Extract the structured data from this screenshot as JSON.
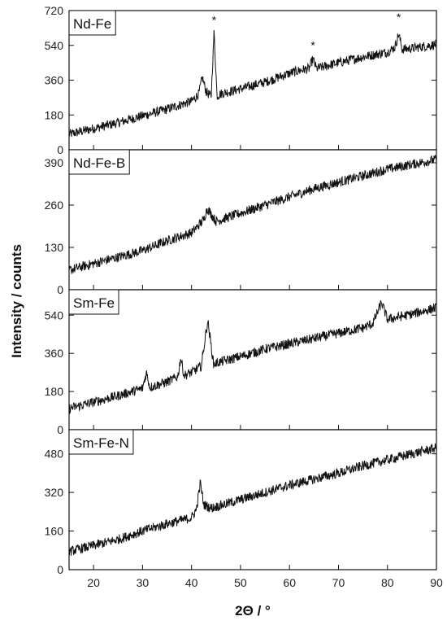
{
  "chart_data": {
    "type": "line",
    "xlabel": "2Θ / °",
    "ylabel": "Intensity / counts",
    "xlim": [
      15,
      90
    ],
    "x_ticks": [
      "20",
      "30",
      "40",
      "50",
      "60",
      "70",
      "80",
      "90"
    ],
    "panels": [
      {
        "label": "Nd-Fe",
        "ylim": [
          0,
          720
        ],
        "y_ticks": [
          "0",
          "180",
          "360",
          "540",
          "720"
        ],
        "markers": [
          "*",
          "*",
          "*"
        ],
        "marker_x": [
          44.6,
          64.8,
          82.3
        ],
        "marker_y": [
          650,
          520,
          665
        ],
        "series": [
          {
            "x": [
              15,
              20,
              25,
              30,
              35,
              38,
              40,
              41.5,
              42.2,
              43,
              44,
              44.6,
              45.2,
              46,
              50,
              55,
              60,
              62,
              64,
              64.8,
              65.5,
              70,
              75,
              80,
              81.5,
              82.3,
              83,
              85,
              90
            ],
            "values": [
              80,
              110,
              140,
              175,
              210,
              235,
              250,
              290,
              375,
              300,
              275,
              610,
              280,
              290,
              315,
              350,
              395,
              410,
              420,
              470,
              420,
              450,
              480,
              505,
              530,
              600,
              520,
              525,
              545
            ]
          }
        ]
      },
      {
        "label": "Nd-Fe-B",
        "ylim": [
          0,
          430
        ],
        "y_ticks": [
          "0",
          "130",
          "260",
          "390"
        ],
        "series": [
          {
            "x": [
              15,
              20,
              25,
              30,
              35,
              40,
              42.5,
              43.2,
              45,
              50,
              55,
              60,
              65,
              70,
              75,
              80,
              85,
              90
            ],
            "values": [
              60,
              80,
              100,
              120,
              150,
              175,
              215,
              250,
              210,
              235,
              260,
              285,
              310,
              330,
              350,
              370,
              385,
              400
            ]
          }
        ]
      },
      {
        "label": "Sm-Fe",
        "ylim": [
          0,
          660
        ],
        "y_ticks": [
          "0",
          "180",
          "360",
          "540"
        ],
        "series": [
          {
            "x": [
              15,
              20,
              25,
              30,
              30.8,
              31.5,
              35,
              37.2,
              37.8,
              38.5,
              40,
              42,
              43.3,
              44.5,
              46,
              50,
              55,
              60,
              65,
              70,
              75,
              77,
              78.8,
              80,
              85,
              90
            ],
            "values": [
              100,
              130,
              160,
              195,
              270,
              200,
              225,
              250,
              340,
              255,
              270,
              300,
              515,
              310,
              320,
              345,
              380,
              405,
              430,
              455,
              480,
              500,
              600,
              520,
              545,
              575
            ]
          }
        ]
      },
      {
        "label": "Sm-Fe-N",
        "ylim": [
          0,
          580
        ],
        "y_ticks": [
          "0",
          "160",
          "320",
          "480"
        ],
        "series": [
          {
            "x": [
              15,
              20,
              25,
              30,
              35,
              40,
              41,
              41.8,
              42.5,
              44,
              50,
              55,
              60,
              65,
              70,
              75,
              80,
              85,
              90
            ],
            "values": [
              75,
              100,
              125,
              160,
              190,
              215,
              250,
              360,
              270,
              255,
              290,
              320,
              350,
              375,
              400,
              430,
              455,
              480,
              505
            ]
          }
        ]
      }
    ]
  }
}
